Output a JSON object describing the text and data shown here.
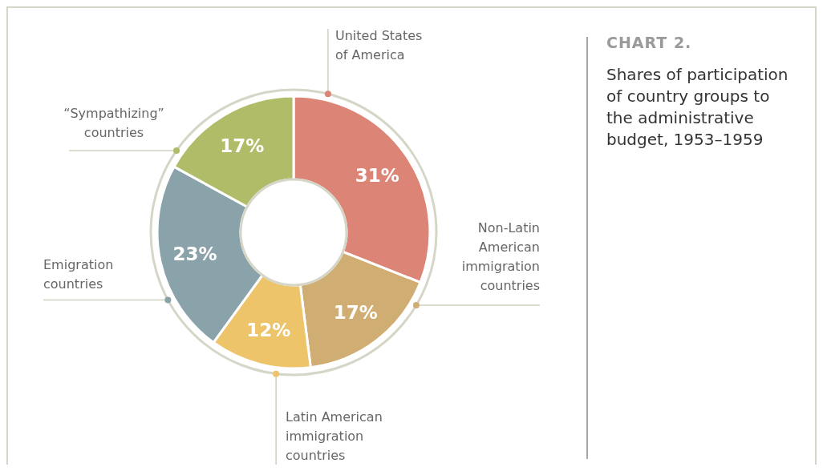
{
  "chart_data": {
    "type": "donut",
    "title": "CHART 2.",
    "subtitle": "Shares of participation of country groups to the administrative budget, 1953–1959",
    "categories": [
      "United States of America",
      "Non-Latin American immigration countries",
      "Latin American immigration countries",
      "Emigration countries",
      "“Sympathizing” countries"
    ],
    "values": [
      31,
      17,
      12,
      23,
      17
    ],
    "colors": [
      "#dc8576",
      "#d0ad73",
      "#eec46a",
      "#8aa2aa",
      "#b0bc67"
    ],
    "value_labels": [
      "31%",
      "17%",
      "12%",
      "23%",
      "17%"
    ]
  }
}
